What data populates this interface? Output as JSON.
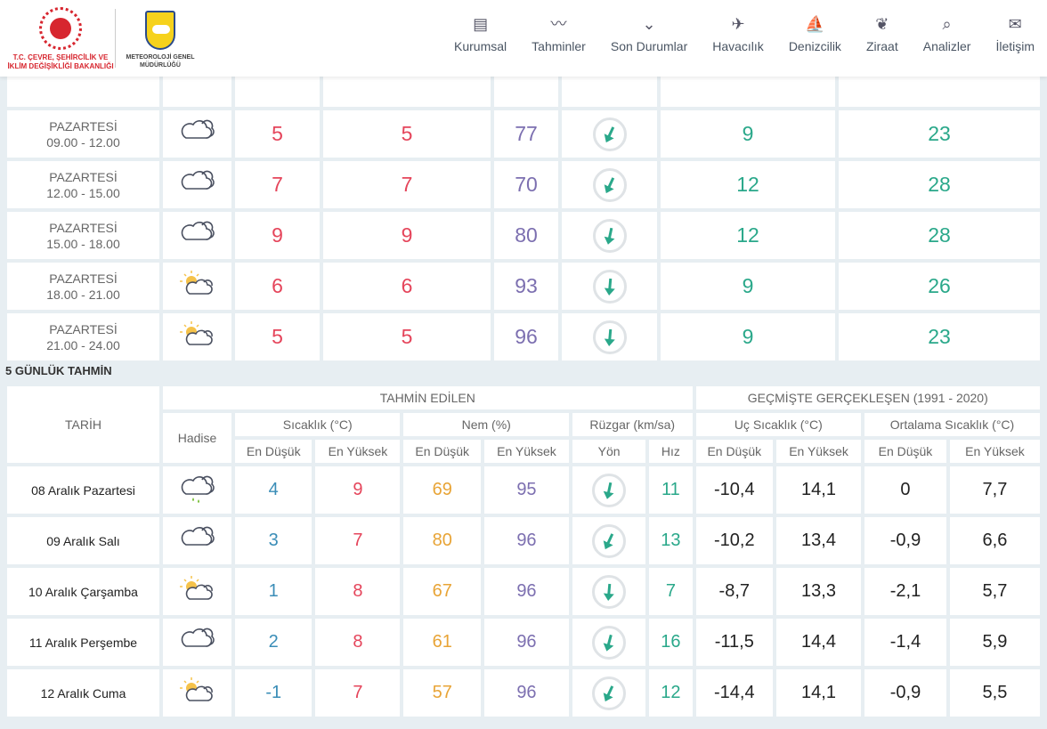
{
  "header": {
    "ministry": "T.C. ÇEVRE, ŞEHİRCİLİK VE İKLİM DEĞİŞİKLİĞİ BAKANLIĞI",
    "mgm_top": "METEOROLOJİ",
    "mgm": "METEOROLOJİ GENEL MÜDÜRLÜĞÜ",
    "nav": [
      {
        "label": "Kurumsal",
        "icon": "document-icon",
        "glyph": "▤"
      },
      {
        "label": "Tahminler",
        "icon": "chart-icon",
        "glyph": "〰"
      },
      {
        "label": "Son Durumlar",
        "icon": "chevron-circle-icon",
        "glyph": "⌄"
      },
      {
        "label": "Havacılık",
        "icon": "plane-icon",
        "glyph": "✈"
      },
      {
        "label": "Denizcilik",
        "icon": "boat-icon",
        "glyph": "⛵"
      },
      {
        "label": "Ziraat",
        "icon": "wheat-icon",
        "glyph": "❦"
      },
      {
        "label": "Analizler",
        "icon": "analysis-icon",
        "glyph": "⌕"
      },
      {
        "label": "İletişim",
        "icon": "envelope-icon",
        "glyph": "✉"
      }
    ]
  },
  "hourly": [
    {
      "day": "PAZARTESİ",
      "time": "09.00 - 12.00",
      "icon": "cloudy",
      "t1": "5",
      "t2": "5",
      "hum": "77",
      "dir": 25,
      "speed": "9",
      "gust": "23"
    },
    {
      "day": "PAZARTESİ",
      "time": "12.00 - 15.00",
      "icon": "cloudy",
      "t1": "7",
      "t2": "7",
      "hum": "70",
      "dir": 25,
      "speed": "12",
      "gust": "28"
    },
    {
      "day": "PAZARTESİ",
      "time": "15.00 - 18.00",
      "icon": "cloudy",
      "t1": "9",
      "t2": "9",
      "hum": "80",
      "dir": 12,
      "speed": "12",
      "gust": "28"
    },
    {
      "day": "PAZARTESİ",
      "time": "18.00 - 21.00",
      "icon": "partly-sunny",
      "t1": "6",
      "t2": "6",
      "hum": "93",
      "dir": 5,
      "speed": "9",
      "gust": "26"
    },
    {
      "day": "PAZARTESİ",
      "time": "21.00 - 24.00",
      "icon": "partly-sunny",
      "t1": "5",
      "t2": "5",
      "hum": "96",
      "dir": 5,
      "speed": "9",
      "gust": "23"
    }
  ],
  "five_day": {
    "title": "5 GÜNLÜK TAHMİN",
    "tarih": "TARİH",
    "predicted": "TAHMİN EDİLEN",
    "past": "GEÇMİŞTE GERÇEKLEŞEN (1991 - 2020)",
    "hadise": "Hadise",
    "temp": "Sıcaklık (°C)",
    "hum": "Nem (%)",
    "wind": "Rüzgar (km/sa)",
    "extreme": "Uç Sıcaklık (°C)",
    "avg": "Ortalama Sıcaklık (°C)",
    "low": "En Düşük",
    "high": "En Yüksek",
    "dir": "Yön",
    "speed": "Hız",
    "rows": [
      {
        "date": "08 Aralık Pazartesi",
        "icon": "rainy",
        "tmin": "4",
        "tmax": "9",
        "hmin": "69",
        "hmax": "95",
        "dir": 12,
        "speed": "11",
        "emin": "-10,4",
        "emax": "14,1",
        "amin": "0",
        "amax": "7,7"
      },
      {
        "date": "09 Aralık Salı",
        "icon": "cloudy",
        "tmin": "3",
        "tmax": "7",
        "hmin": "80",
        "hmax": "96",
        "dir": 25,
        "speed": "13",
        "emin": "-10,2",
        "emax": "13,4",
        "amin": "-0,9",
        "amax": "6,6"
      },
      {
        "date": "10 Aralık Çarşamba",
        "icon": "partly-sunny",
        "tmin": "1",
        "tmax": "8",
        "hmin": "67",
        "hmax": "96",
        "dir": 5,
        "speed": "7",
        "emin": "-8,7",
        "emax": "13,3",
        "amin": "-2,1",
        "amax": "5,7"
      },
      {
        "date": "11 Aralık Perşembe",
        "icon": "cloudy",
        "tmin": "2",
        "tmax": "8",
        "hmin": "61",
        "hmax": "96",
        "dir": 15,
        "speed": "16",
        "emin": "-11,5",
        "emax": "14,4",
        "amin": "-1,4",
        "amax": "5,9"
      },
      {
        "date": "12 Aralık Cuma",
        "icon": "partly-sunny",
        "tmin": "-1",
        "tmax": "7",
        "hmin": "57",
        "hmax": "96",
        "dir": 25,
        "speed": "12",
        "emin": "-14,4",
        "emax": "14,1",
        "amin": "-0,9",
        "amax": "5,5"
      }
    ]
  }
}
